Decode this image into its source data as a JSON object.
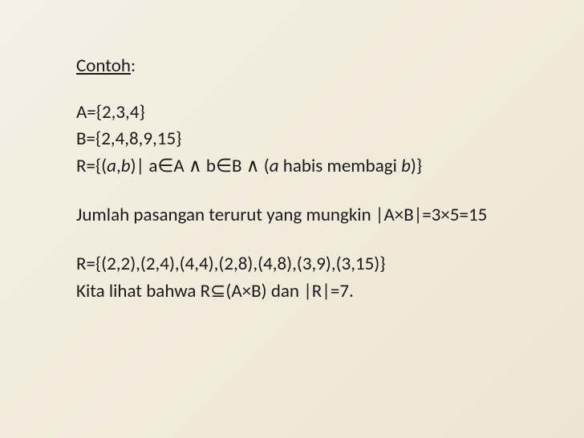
{
  "background_color": "#f2ecde",
  "text_color": "#1a1a1a",
  "font_family": "Gill Sans, Calibri, sans-serif",
  "font_size_pt": 17,
  "title": {
    "label": "Contoh",
    "colon": ":"
  },
  "setA": "A={2,3,4}",
  "setB": "B={2,4,8,9,15}",
  "relationDef": {
    "p1": "R={(",
    "a": "a",
    "c1": ",",
    "b": "b",
    "p2": ")| a∈A ∧ b∈B ∧ (",
    "a2": "a",
    "mid": " habis membagi ",
    "b2": "b",
    "p3": ")}"
  },
  "count": "Jumlah pasangan terurut yang mungkin |A×B|=3×5=15",
  "relationSet": "R={(2,2),(2,4),(4,4),(2,8),(4,8),(3,9),(3,15)}",
  "conclusion": "Kita lihat bahwa R⊆(A×B) dan |R|=7."
}
